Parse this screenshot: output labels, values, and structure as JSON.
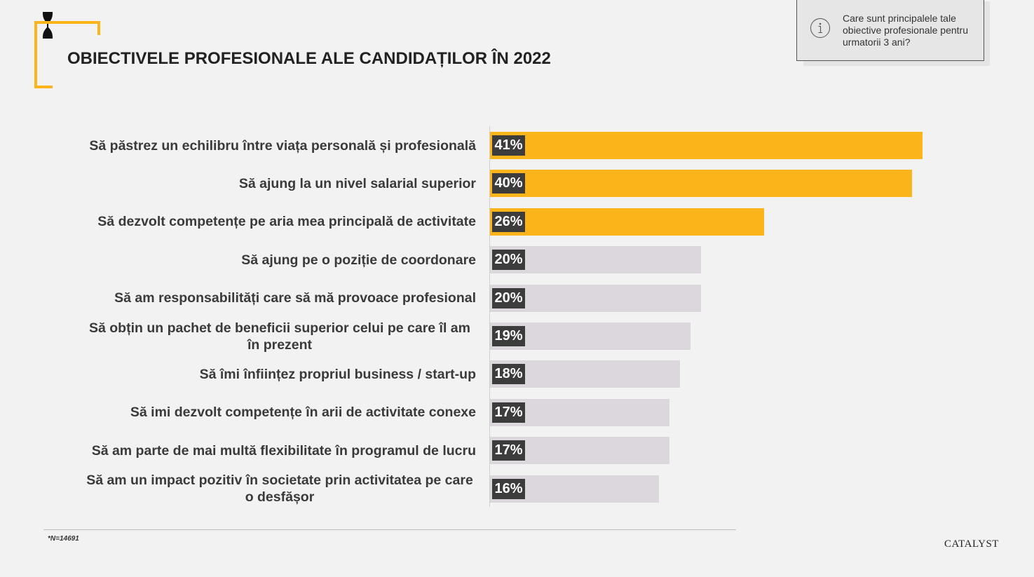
{
  "title": "OBIECTIVELE PROFESIONALE ALE CANDIDAȚILOR ÎN 2022",
  "info": {
    "icon": "info-icon",
    "text": "Care sunt principalele tale obiective profesionale pentru urmatorii 3 ani?"
  },
  "colors": {
    "accent": "#fbb41a",
    "bar_highlight": "#fbb41a",
    "bar_default": "#dcd7dd",
    "label_bg": "#3c3c3c",
    "background": "#f2f2f2"
  },
  "chart_data": {
    "type": "bar",
    "orientation": "horizontal",
    "categories": [
      "Să păstrez un echilibru între viața personală și profesională",
      "Să ajung la un nivel salarial superior",
      "Să dezvolt competențe pe aria mea principală de activitate",
      "Să ajung pe o poziție de coordonare",
      "Să am responsabilități care să mă provoace profesional",
      "Să obțin un pachet de beneficii superior celui pe care îl am în prezent",
      "Să îmi înființez propriul business / start-up",
      "Să imi dezvolt competențe în arii de activitate conexe",
      "Să am parte de mai multă flexibilitate în programul de lucru",
      "Să am un impact pozitiv în societate prin activitatea pe care o desfășor"
    ],
    "values": [
      41,
      40,
      26,
      20,
      20,
      19,
      18,
      17,
      17,
      16
    ],
    "value_labels": [
      "41%",
      "40%",
      "26%",
      "20%",
      "20%",
      "19%",
      "18%",
      "17%",
      "17%",
      "16%"
    ],
    "highlighted": [
      true,
      true,
      true,
      false,
      false,
      false,
      false,
      false,
      false,
      false
    ],
    "xlim": [
      0,
      45
    ],
    "grid": false
  },
  "footnote": "*N=14691",
  "logo": "CATALYST"
}
